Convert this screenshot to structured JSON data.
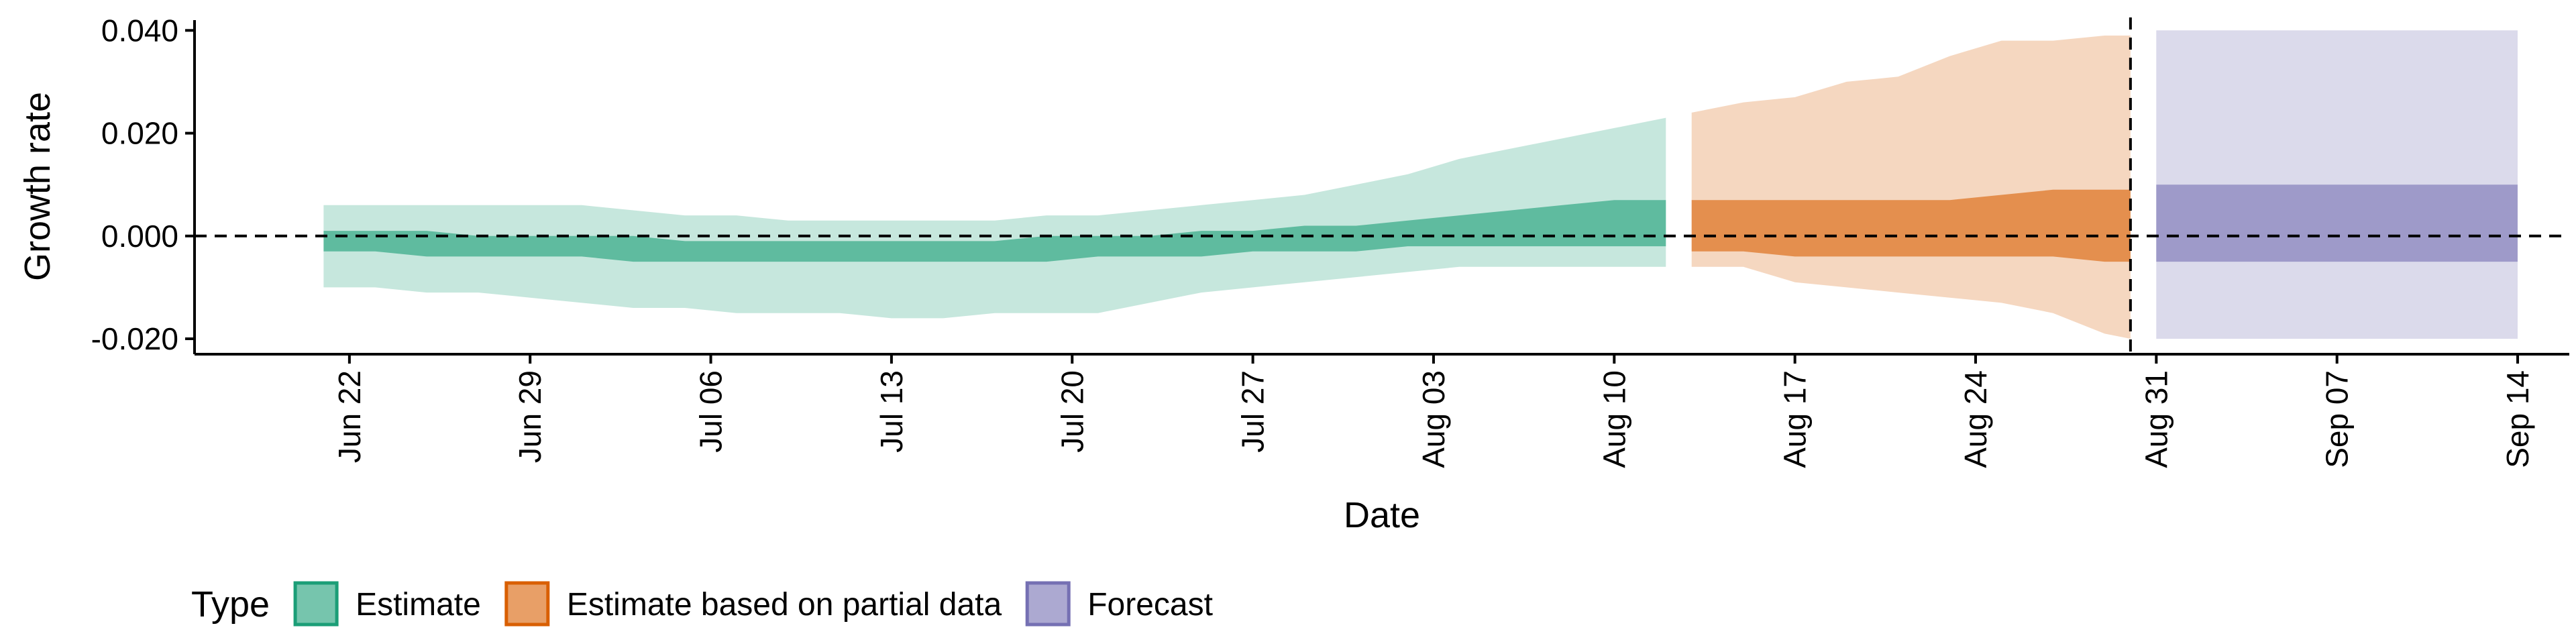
{
  "chart_data": {
    "type": "area",
    "xlabel": "Date",
    "ylabel": "Growth rate",
    "x_range": [
      "2020-06-16",
      "2020-09-16"
    ],
    "ylim": [
      -0.023,
      0.042
    ],
    "x_ticks": [
      {
        "date": "2020-06-22",
        "label": "Jun 22"
      },
      {
        "date": "2020-06-29",
        "label": "Jun 29"
      },
      {
        "date": "2020-07-06",
        "label": "Jul 06"
      },
      {
        "date": "2020-07-13",
        "label": "Jul 13"
      },
      {
        "date": "2020-07-20",
        "label": "Jul 20"
      },
      {
        "date": "2020-07-27",
        "label": "Jul 27"
      },
      {
        "date": "2020-08-03",
        "label": "Aug 03"
      },
      {
        "date": "2020-08-10",
        "label": "Aug 10"
      },
      {
        "date": "2020-08-17",
        "label": "Aug 17"
      },
      {
        "date": "2020-08-24",
        "label": "Aug 24"
      },
      {
        "date": "2020-08-31",
        "label": "Aug 31"
      },
      {
        "date": "2020-09-07",
        "label": "Sep 07"
      },
      {
        "date": "2020-09-14",
        "label": "Sep 14"
      }
    ],
    "y_ticks": [
      {
        "value": -0.02,
        "label": "-0.020"
      },
      {
        "value": 0.0,
        "label": "0.000"
      },
      {
        "value": 0.02,
        "label": "0.020"
      },
      {
        "value": 0.04,
        "label": "0.040"
      }
    ],
    "reference_lines": {
      "horizontal_y": 0.0,
      "vertical_date": "2020-08-30"
    },
    "grid": false,
    "legend_position": "bottom-left",
    "legend": {
      "title": "Type",
      "items": [
        {
          "label": "Estimate",
          "color": "#1b9e77"
        },
        {
          "label": "Estimate based on partial data",
          "color": "#d95f02"
        },
        {
          "label": "Forecast",
          "color": "#7570b3"
        }
      ]
    },
    "series": [
      {
        "name": "Estimate",
        "color": "#1b9e77",
        "x": [
          "2020-06-21",
          "2020-06-23",
          "2020-06-25",
          "2020-06-27",
          "2020-06-29",
          "2020-07-01",
          "2020-07-03",
          "2020-07-05",
          "2020-07-07",
          "2020-07-09",
          "2020-07-11",
          "2020-07-13",
          "2020-07-15",
          "2020-07-17",
          "2020-07-19",
          "2020-07-21",
          "2020-07-23",
          "2020-07-25",
          "2020-07-27",
          "2020-07-29",
          "2020-07-31",
          "2020-08-02",
          "2020-08-04",
          "2020-08-06",
          "2020-08-08",
          "2020-08-10",
          "2020-08-12"
        ],
        "lower_90": [
          -0.01,
          -0.01,
          -0.011,
          -0.011,
          -0.012,
          -0.013,
          -0.014,
          -0.014,
          -0.015,
          -0.015,
          -0.015,
          -0.016,
          -0.016,
          -0.015,
          -0.015,
          -0.015,
          -0.013,
          -0.011,
          -0.01,
          -0.009,
          -0.008,
          -0.007,
          -0.006,
          -0.006,
          -0.006,
          -0.006,
          -0.006
        ],
        "upper_90": [
          0.006,
          0.006,
          0.006,
          0.006,
          0.006,
          0.006,
          0.005,
          0.004,
          0.004,
          0.003,
          0.003,
          0.003,
          0.003,
          0.003,
          0.004,
          0.004,
          0.005,
          0.006,
          0.007,
          0.008,
          0.01,
          0.012,
          0.015,
          0.017,
          0.019,
          0.021,
          0.023
        ],
        "lower_50": [
          -0.003,
          -0.003,
          -0.004,
          -0.004,
          -0.004,
          -0.004,
          -0.005,
          -0.005,
          -0.005,
          -0.005,
          -0.005,
          -0.005,
          -0.005,
          -0.005,
          -0.005,
          -0.004,
          -0.004,
          -0.004,
          -0.003,
          -0.003,
          -0.003,
          -0.002,
          -0.002,
          -0.002,
          -0.002,
          -0.002,
          -0.002
        ],
        "upper_50": [
          0.001,
          0.001,
          0.001,
          0.0,
          0.0,
          0.0,
          0.0,
          -0.001,
          -0.001,
          -0.001,
          -0.001,
          -0.001,
          -0.001,
          -0.001,
          0.0,
          0.0,
          0.0,
          0.001,
          0.001,
          0.002,
          0.002,
          0.003,
          0.004,
          0.005,
          0.006,
          0.007,
          0.007
        ]
      },
      {
        "name": "Estimate based on partial data",
        "color": "#d95f02",
        "x": [
          "2020-08-13",
          "2020-08-15",
          "2020-08-17",
          "2020-08-19",
          "2020-08-21",
          "2020-08-23",
          "2020-08-25",
          "2020-08-27",
          "2020-08-29",
          "2020-08-30"
        ],
        "lower_90": [
          -0.006,
          -0.006,
          -0.009,
          -0.01,
          -0.011,
          -0.012,
          -0.013,
          -0.015,
          -0.019,
          -0.02
        ],
        "upper_90": [
          0.024,
          0.026,
          0.027,
          0.03,
          0.031,
          0.035,
          0.038,
          0.038,
          0.039,
          0.039
        ],
        "lower_50": [
          -0.003,
          -0.003,
          -0.004,
          -0.004,
          -0.004,
          -0.004,
          -0.004,
          -0.004,
          -0.005,
          -0.005
        ],
        "upper_50": [
          0.007,
          0.007,
          0.007,
          0.007,
          0.007,
          0.007,
          0.008,
          0.009,
          0.009,
          0.009
        ]
      },
      {
        "name": "Forecast",
        "color": "#7570b3",
        "x": [
          "2020-08-31",
          "2020-09-13"
        ],
        "lower_90": [
          -0.02,
          -0.02
        ],
        "upper_90": [
          0.04,
          0.04
        ],
        "lower_50": [
          -0.005,
          -0.005
        ],
        "upper_50": [
          0.01,
          0.01
        ]
      }
    ]
  }
}
